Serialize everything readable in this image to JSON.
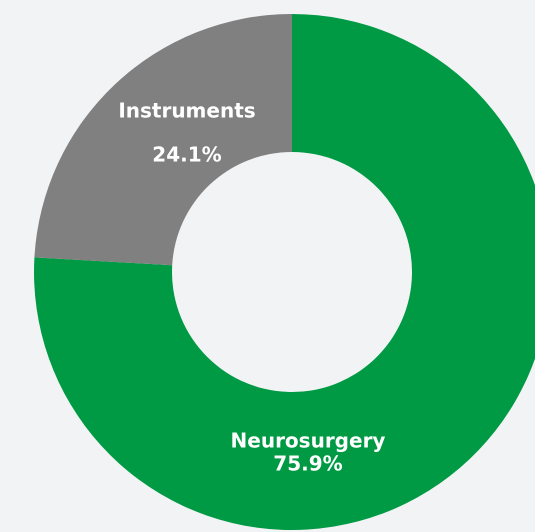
{
  "chart_data": {
    "type": "donut",
    "categories": [
      "Neurosurgery",
      "Instruments"
    ],
    "values": [
      75.9,
      24.1
    ],
    "value_labels": [
      "75.9%",
      "24.1%"
    ],
    "colors": [
      "#009a44",
      "#808080"
    ]
  }
}
